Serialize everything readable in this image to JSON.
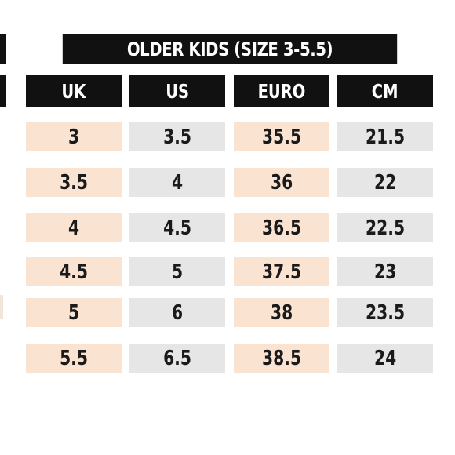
{
  "title": "OLDER KIDS (SIZE 3-5.5)",
  "columns": [
    "UK",
    "US",
    "EURO",
    "CM"
  ],
  "rows": [
    [
      "3",
      "3.5",
      "35.5",
      "21.5"
    ],
    [
      "3.5",
      "4",
      "36",
      "22"
    ],
    [
      "4",
      "4.5",
      "36.5",
      "22.5"
    ],
    [
      "4.5",
      "5",
      "37.5",
      "23"
    ],
    [
      "5",
      "6",
      "38",
      "23.5"
    ],
    [
      "5.5",
      "6.5",
      "38.5",
      "24"
    ]
  ],
  "colors": {
    "header_bg": "#111111",
    "header_text": "#ffffff",
    "peach": "#fbe3d2",
    "grey": "#e6e6e6"
  }
}
